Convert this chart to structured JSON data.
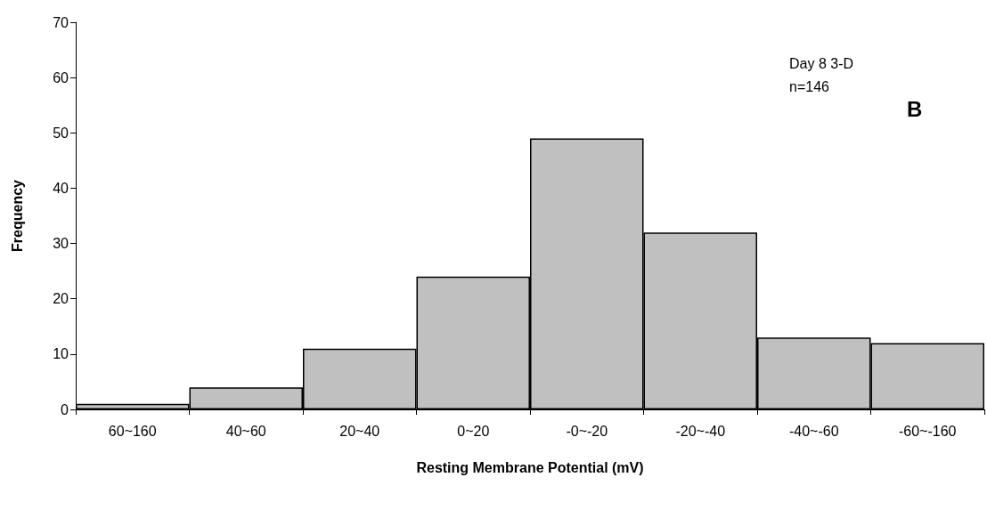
{
  "chart_data": {
    "type": "bar",
    "xlabel": "Resting Membrane Potential (mV)",
    "ylabel": "Frequency",
    "categories": [
      "60~160",
      "40~60",
      "20~40",
      "0~20",
      "-0~-20",
      "-20~-40",
      "-40~-60",
      "-60~-160"
    ],
    "values": [
      1,
      4,
      11,
      24,
      49,
      32,
      13,
      12
    ],
    "color": "#c0c0c0",
    "ylim": [
      0,
      70
    ],
    "yticks": [
      0,
      10,
      20,
      30,
      40,
      50,
      60,
      70
    ],
    "grid": false,
    "annotations": [
      "Day 8 3-D",
      "n=146",
      "B"
    ]
  }
}
